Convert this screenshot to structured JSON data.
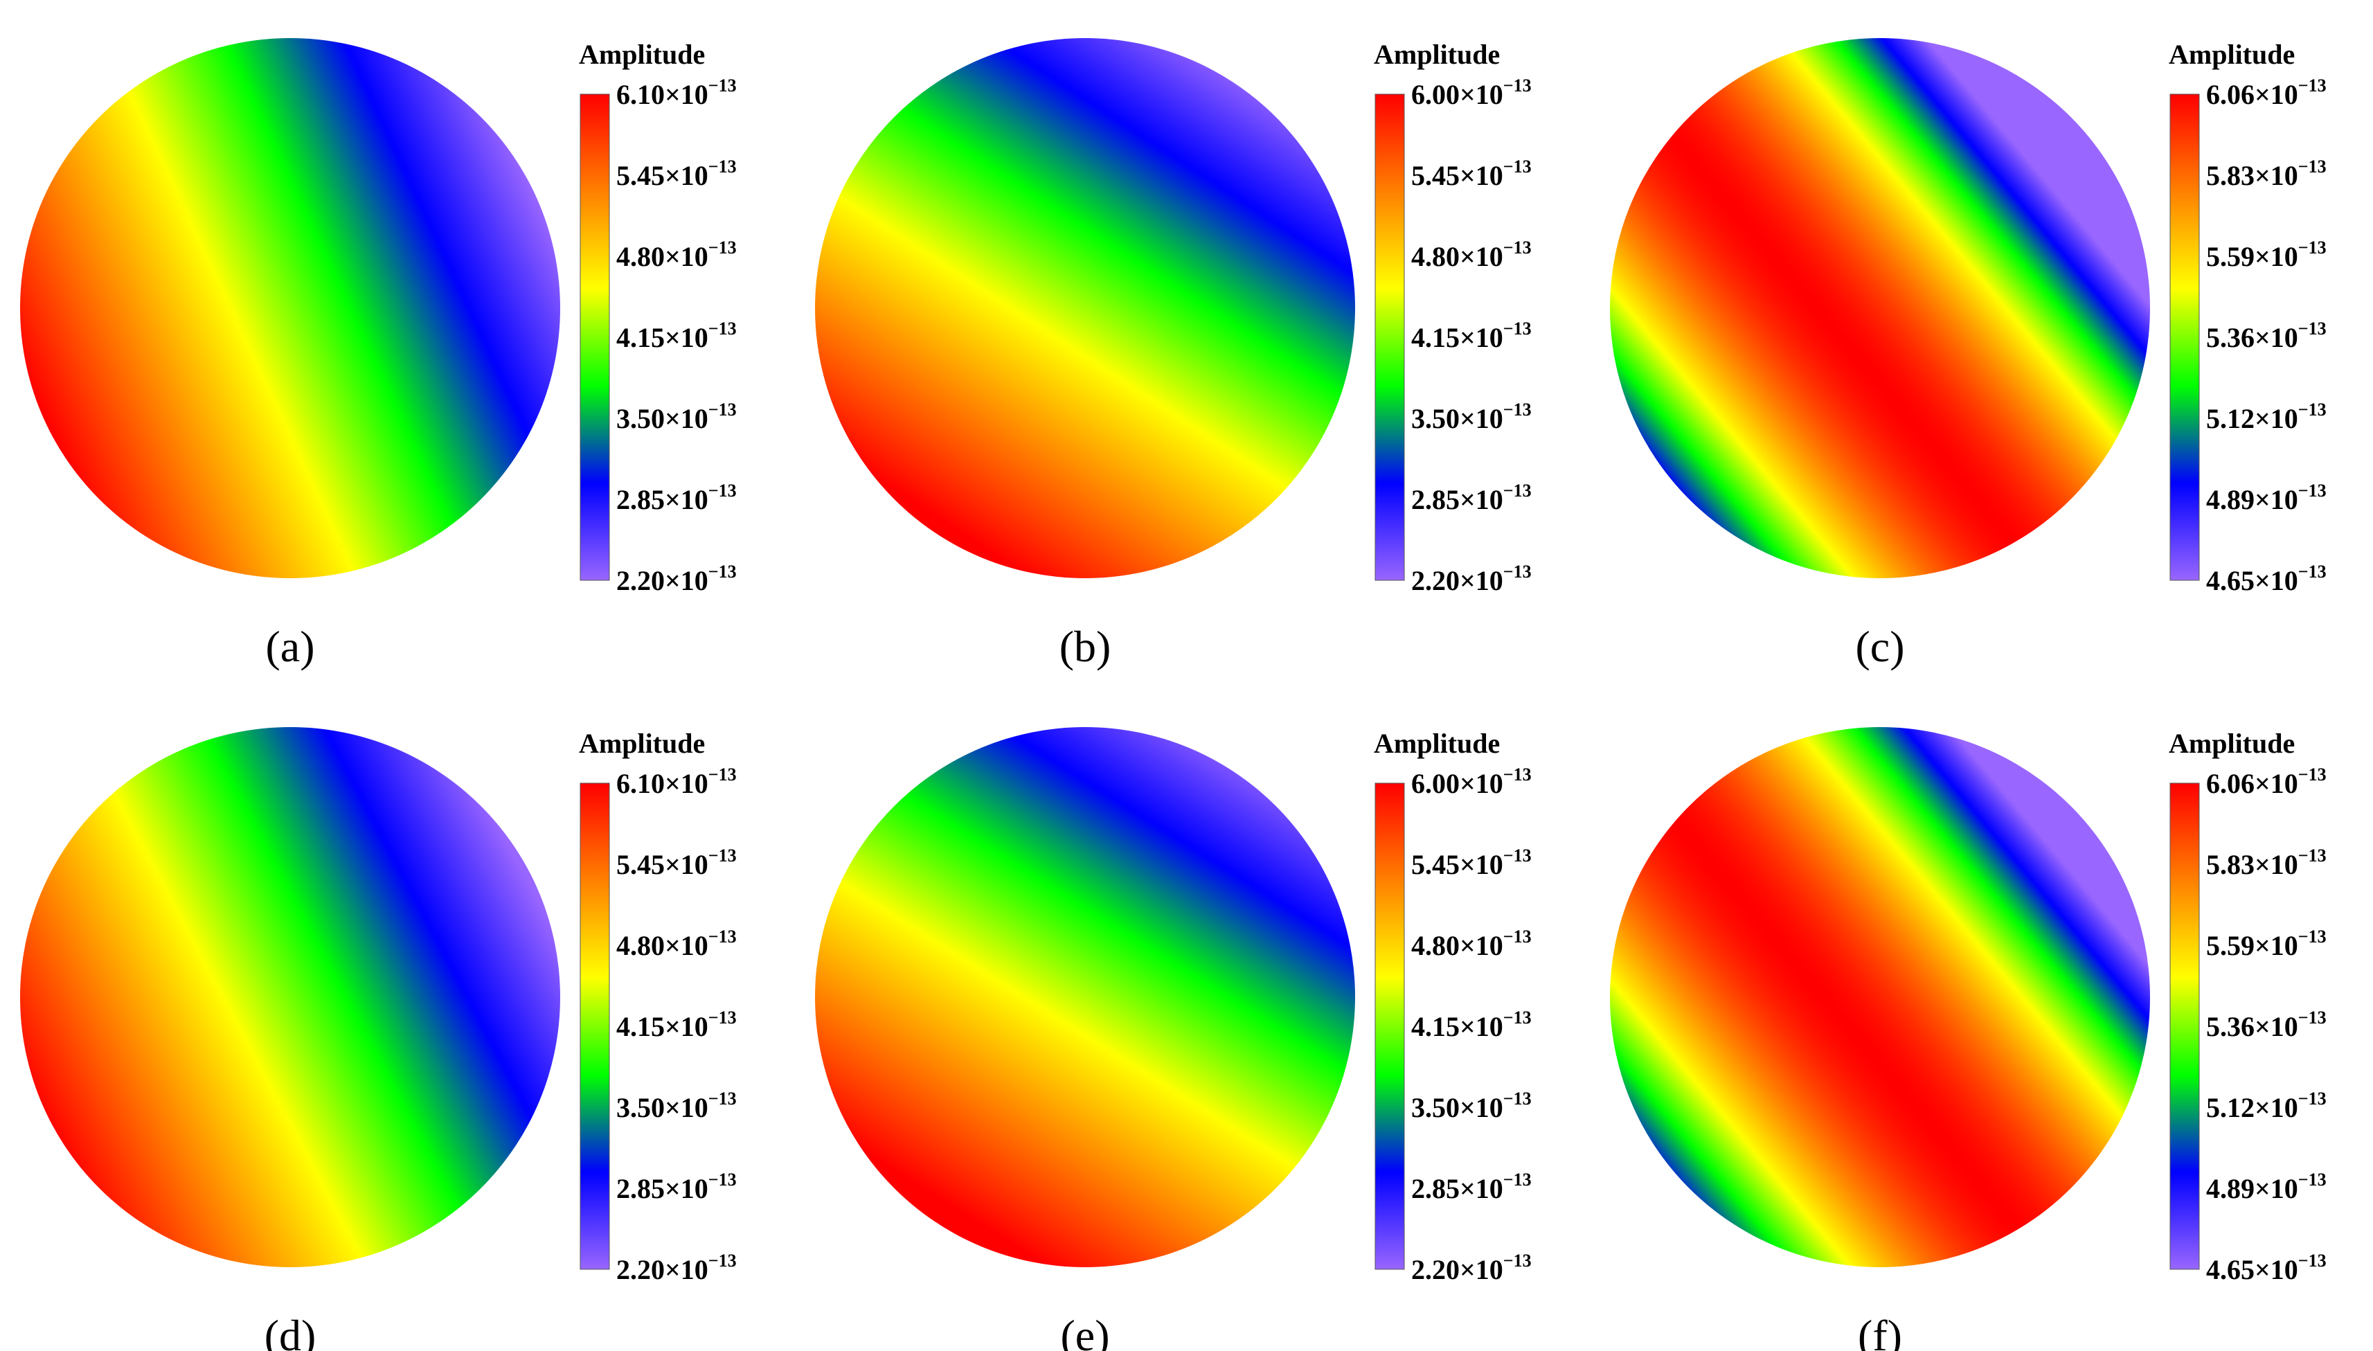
{
  "figure": {
    "colormap": [
      "#9966ff",
      "#0000ff",
      "#00ff00",
      "#ffff00",
      "#ff8000",
      "#ff0000"
    ],
    "chart_data": [
      {
        "type": "heatmap",
        "panel_label": "(a)",
        "colorbar_title": "Amplitude",
        "colorbar_ticks": [
          "6.10",
          "5.45",
          "4.80",
          "4.15",
          "3.50",
          "2.85",
          "2.20"
        ],
        "tick_exponent": "−13",
        "tick_multiplier": "×10",
        "value_range": [
          2.2e-13,
          6.1e-13
        ],
        "field": {
          "kind": "linear",
          "gradient_direction_deg": 155,
          "spread": 0.5,
          "center_offset": 0.0
        }
      },
      {
        "type": "heatmap",
        "panel_label": "(b)",
        "colorbar_title": "Amplitude",
        "colorbar_ticks": [
          "6.00",
          "5.45",
          "4.80",
          "4.15",
          "3.50",
          "2.85",
          "2.20"
        ],
        "tick_exponent": "−13",
        "tick_multiplier": "×10",
        "value_range": [
          2.2e-13,
          6e-13
        ],
        "field": {
          "kind": "linear",
          "gradient_direction_deg": 123,
          "spread": 0.5,
          "center_offset": 0.05
        }
      },
      {
        "type": "heatmap",
        "panel_label": "(c)",
        "colorbar_title": "Amplitude",
        "colorbar_ticks": [
          "6.06",
          "5.83",
          "5.59",
          "5.36",
          "5.12",
          "4.89",
          "4.65"
        ],
        "tick_exponent": "−13",
        "tick_multiplier": "×10",
        "value_range": [
          4.65e-13,
          6.06e-13
        ],
        "field": {
          "kind": "ring",
          "axis_deg": 140,
          "peak_offset": 0.18,
          "falloff": 1.05
        }
      },
      {
        "type": "heatmap",
        "panel_label": "(d)",
        "colorbar_title": "Amplitude",
        "colorbar_ticks": [
          "6.10",
          "5.45",
          "4.80",
          "4.15",
          "3.50",
          "2.85",
          "2.20"
        ],
        "tick_exponent": "−13",
        "tick_multiplier": "×10",
        "value_range": [
          2.2e-13,
          6.1e-13
        ],
        "field": {
          "kind": "linear",
          "gradient_direction_deg": 152,
          "spread": 0.5,
          "center_offset": -0.02
        }
      },
      {
        "type": "heatmap",
        "panel_label": "(e)",
        "colorbar_title": "Amplitude",
        "colorbar_ticks": [
          "6.00",
          "5.45",
          "4.80",
          "4.15",
          "3.50",
          "2.85",
          "2.20"
        ],
        "tick_exponent": "−13",
        "tick_multiplier": "×10",
        "value_range": [
          2.2e-13,
          6e-13
        ],
        "field": {
          "kind": "linear",
          "gradient_direction_deg": 122,
          "spread": 0.5,
          "center_offset": 0.08
        }
      },
      {
        "type": "heatmap",
        "panel_label": "(f)",
        "colorbar_title": "Amplitude",
        "colorbar_ticks": [
          "6.06",
          "5.83",
          "5.59",
          "5.36",
          "5.12",
          "4.89",
          "4.65"
        ],
        "tick_exponent": "−13",
        "tick_multiplier": "×10",
        "value_range": [
          4.65e-13,
          6.06e-13
        ],
        "field": {
          "kind": "ring",
          "axis_deg": 140,
          "peak_offset": 0.16,
          "falloff": 1.0
        }
      }
    ]
  }
}
